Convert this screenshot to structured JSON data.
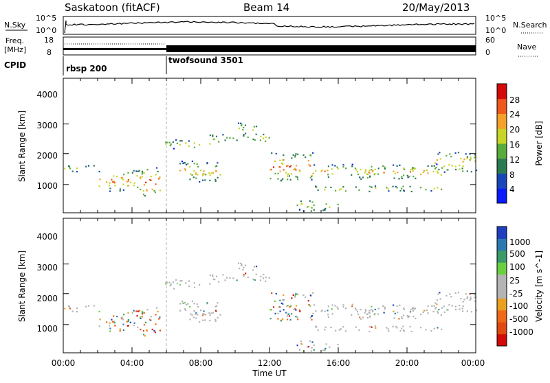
{
  "header": {
    "site": "Saskatoon (fitACF)",
    "beam": "Beam 14",
    "date": "20/May/2013"
  },
  "noise_panel": {
    "left_label": "N.Sky",
    "right_label": "N.Search",
    "left_ticks": [
      "10^5",
      "10^0"
    ],
    "right_ticks": [
      "10^5",
      "10^0"
    ],
    "right_line_style": "dotted"
  },
  "freq_panel": {
    "left_label_1": "Freq.",
    "left_label_2": "[MHz]",
    "left_ticks": [
      "18",
      "8"
    ],
    "right_label": "Nave",
    "right_ticks": [
      "60",
      "0"
    ],
    "right_line_style": "dotted"
  },
  "cpid_panel": {
    "label": "CPID",
    "programs": [
      "rbsp 200",
      "twofsound 3501"
    ]
  },
  "chart_data": [
    {
      "type": "heatmap",
      "name_label": "",
      "ylabel": "Slant Range [km]",
      "ylim": [
        180,
        4600
      ],
      "xlim_hours": [
        0,
        24
      ],
      "y_ticks": [
        "1000",
        "2000",
        "3000",
        "4000"
      ],
      "colorbar": {
        "label": "Power [dB]",
        "ticks": [
          "4",
          "8",
          "12",
          "16",
          "20",
          "24",
          "28"
        ],
        "colors": [
          "#0a1aff",
          "#1846b8",
          "#2c7a50",
          "#5aaa3c",
          "#c8d426",
          "#f4a02a",
          "#ee5a1c",
          "#d40a0a"
        ]
      }
    },
    {
      "type": "heatmap",
      "ylabel": "Slant Range [km]",
      "ylim": [
        180,
        4600
      ],
      "xlim_hours": [
        0,
        24
      ],
      "y_ticks": [
        "1000",
        "2000",
        "3000",
        "4000"
      ],
      "xlabel": "Time UT",
      "x_ticks": [
        "00:00",
        "04:00",
        "08:00",
        "12:00",
        "16:00",
        "20:00",
        "00:00"
      ],
      "colorbar": {
        "label": "Velocity [m s^-1]",
        "ticks": [
          "1000",
          "500",
          "100",
          "25",
          "-25",
          "-100",
          "-500",
          "-1000"
        ],
        "colors": [
          "#1f3fc0",
          "#2a7ab0",
          "#3a9a6a",
          "#6ad040",
          "#b4b4b4",
          "#b4b4b4",
          "#e8a020",
          "#ee6a18",
          "#e04a10",
          "#d40a0a"
        ]
      }
    }
  ],
  "colors": {
    "ground_scatter": "#b4b4b4",
    "frame": "#000000",
    "program_change_line": "#b0b0b0"
  }
}
